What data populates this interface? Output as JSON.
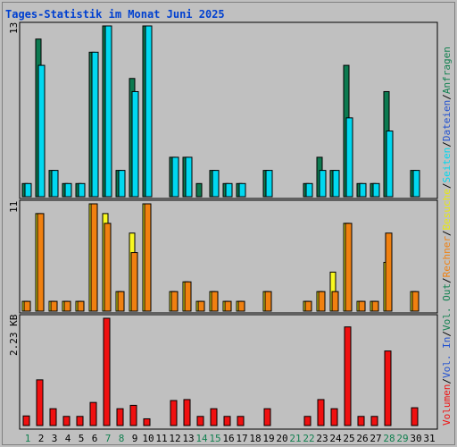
{
  "title": "Tages-Statistik im Monat Juni 2025",
  "colors": {
    "anfragen": "#0c7a50",
    "dateien": "#00d8f0",
    "besuche": "#f8f820",
    "rechner": "#f08010",
    "kb": "#f01010",
    "weekend": "#128050",
    "weekday": "#000000",
    "title": "#0040d0"
  },
  "legend": {
    "anfragen": "Anfragen",
    "sep1": "/",
    "dateien": "Dateien",
    "sep2": "/",
    "seiten": "Seiten",
    "sep3": "/",
    "besuche": "Besuche",
    "sep4": "/",
    "rechner": "Rechner",
    "sep5": "/",
    "volout": "Vol. Out",
    "sep6": "/",
    "volin": "Vol. In",
    "sep7": "/",
    "volumen": "Volumen"
  },
  "chart_data": [
    {
      "type": "bar",
      "panel": "top",
      "ymax_label": "13",
      "ylim": [
        0,
        13
      ],
      "categories": [
        "1",
        "2",
        "3",
        "4",
        "5",
        "6",
        "7",
        "8",
        "9",
        "10",
        "11",
        "12",
        "13",
        "14",
        "15",
        "16",
        "17",
        "18",
        "19",
        "20",
        "21",
        "22",
        "23",
        "24",
        "25",
        "26",
        "27",
        "28",
        "29",
        "30",
        "31"
      ],
      "weekend_days": [
        1,
        7,
        8,
        14,
        15,
        21,
        22,
        28,
        29
      ],
      "series": [
        {
          "name": "Anfragen",
          "values": [
            1,
            12,
            2,
            1,
            1,
            11,
            13,
            2,
            9,
            13,
            0,
            3,
            3,
            1,
            2,
            1,
            1,
            0,
            2,
            0,
            0,
            1,
            3,
            2,
            10,
            1,
            1,
            8,
            0,
            2,
            0
          ]
        },
        {
          "name": "Dateien",
          "values": [
            1,
            10,
            2,
            1,
            1,
            11,
            13,
            2,
            8,
            13,
            0,
            3,
            3,
            0,
            2,
            1,
            1,
            0,
            2,
            0,
            0,
            1,
            2,
            2,
            6,
            1,
            1,
            5,
            0,
            2,
            0
          ]
        },
        {
          "name": "Seiten",
          "values": [
            0,
            0,
            0,
            0,
            0,
            0,
            0,
            0,
            0,
            0,
            0,
            0,
            0,
            0,
            0,
            0,
            0,
            0,
            0,
            0,
            0,
            0,
            0,
            0,
            0,
            0,
            0,
            0,
            0,
            0,
            0
          ]
        }
      ]
    },
    {
      "type": "bar",
      "panel": "middle",
      "ymax_label": "11",
      "ylim": [
        0,
        11
      ],
      "series": [
        {
          "name": "Besuche",
          "values": [
            1,
            10,
            1,
            1,
            1,
            11,
            10,
            2,
            8,
            11,
            0,
            2,
            3,
            1,
            2,
            1,
            1,
            0,
            2,
            0,
            0,
            1,
            2,
            4,
            9,
            1,
            1,
            5,
            0,
            2,
            0
          ]
        },
        {
          "name": "Rechner",
          "values": [
            1,
            10,
            1,
            1,
            1,
            11,
            9,
            2,
            6,
            11,
            0,
            2,
            3,
            1,
            2,
            1,
            1,
            0,
            2,
            0,
            0,
            1,
            2,
            2,
            9,
            1,
            1,
            8,
            0,
            2,
            0
          ]
        }
      ]
    },
    {
      "type": "bar",
      "panel": "bottom",
      "ymax_label": "2.23 KB",
      "ylim": [
        0,
        2.23
      ],
      "series": [
        {
          "name": "Volumen",
          "values": [
            0.2,
            0.95,
            0.35,
            0.19,
            0.19,
            0.48,
            2.23,
            0.35,
            0.42,
            0.14,
            0,
            0.52,
            0.54,
            0.19,
            0.35,
            0.19,
            0.19,
            0,
            0.35,
            0,
            0,
            0.19,
            0.54,
            0.35,
            2.05,
            0.19,
            0.19,
            1.55,
            0,
            0.37,
            0
          ]
        },
        {
          "name": "Vol. In",
          "values": [
            0,
            0,
            0,
            0,
            0,
            0,
            0,
            0,
            0,
            0,
            0,
            0,
            0,
            0,
            0,
            0,
            0,
            0,
            0,
            0,
            0,
            0,
            0,
            0,
            0,
            0,
            0,
            0,
            0,
            0,
            0
          ]
        },
        {
          "name": "Vol. Out",
          "values": [
            0,
            0,
            0,
            0,
            0,
            0,
            0,
            0,
            0,
            0,
            0,
            0,
            0,
            0,
            0,
            0,
            0,
            0,
            0,
            0,
            0,
            0,
            0,
            0,
            0,
            0,
            0,
            0,
            0,
            0,
            0
          ]
        }
      ]
    }
  ]
}
